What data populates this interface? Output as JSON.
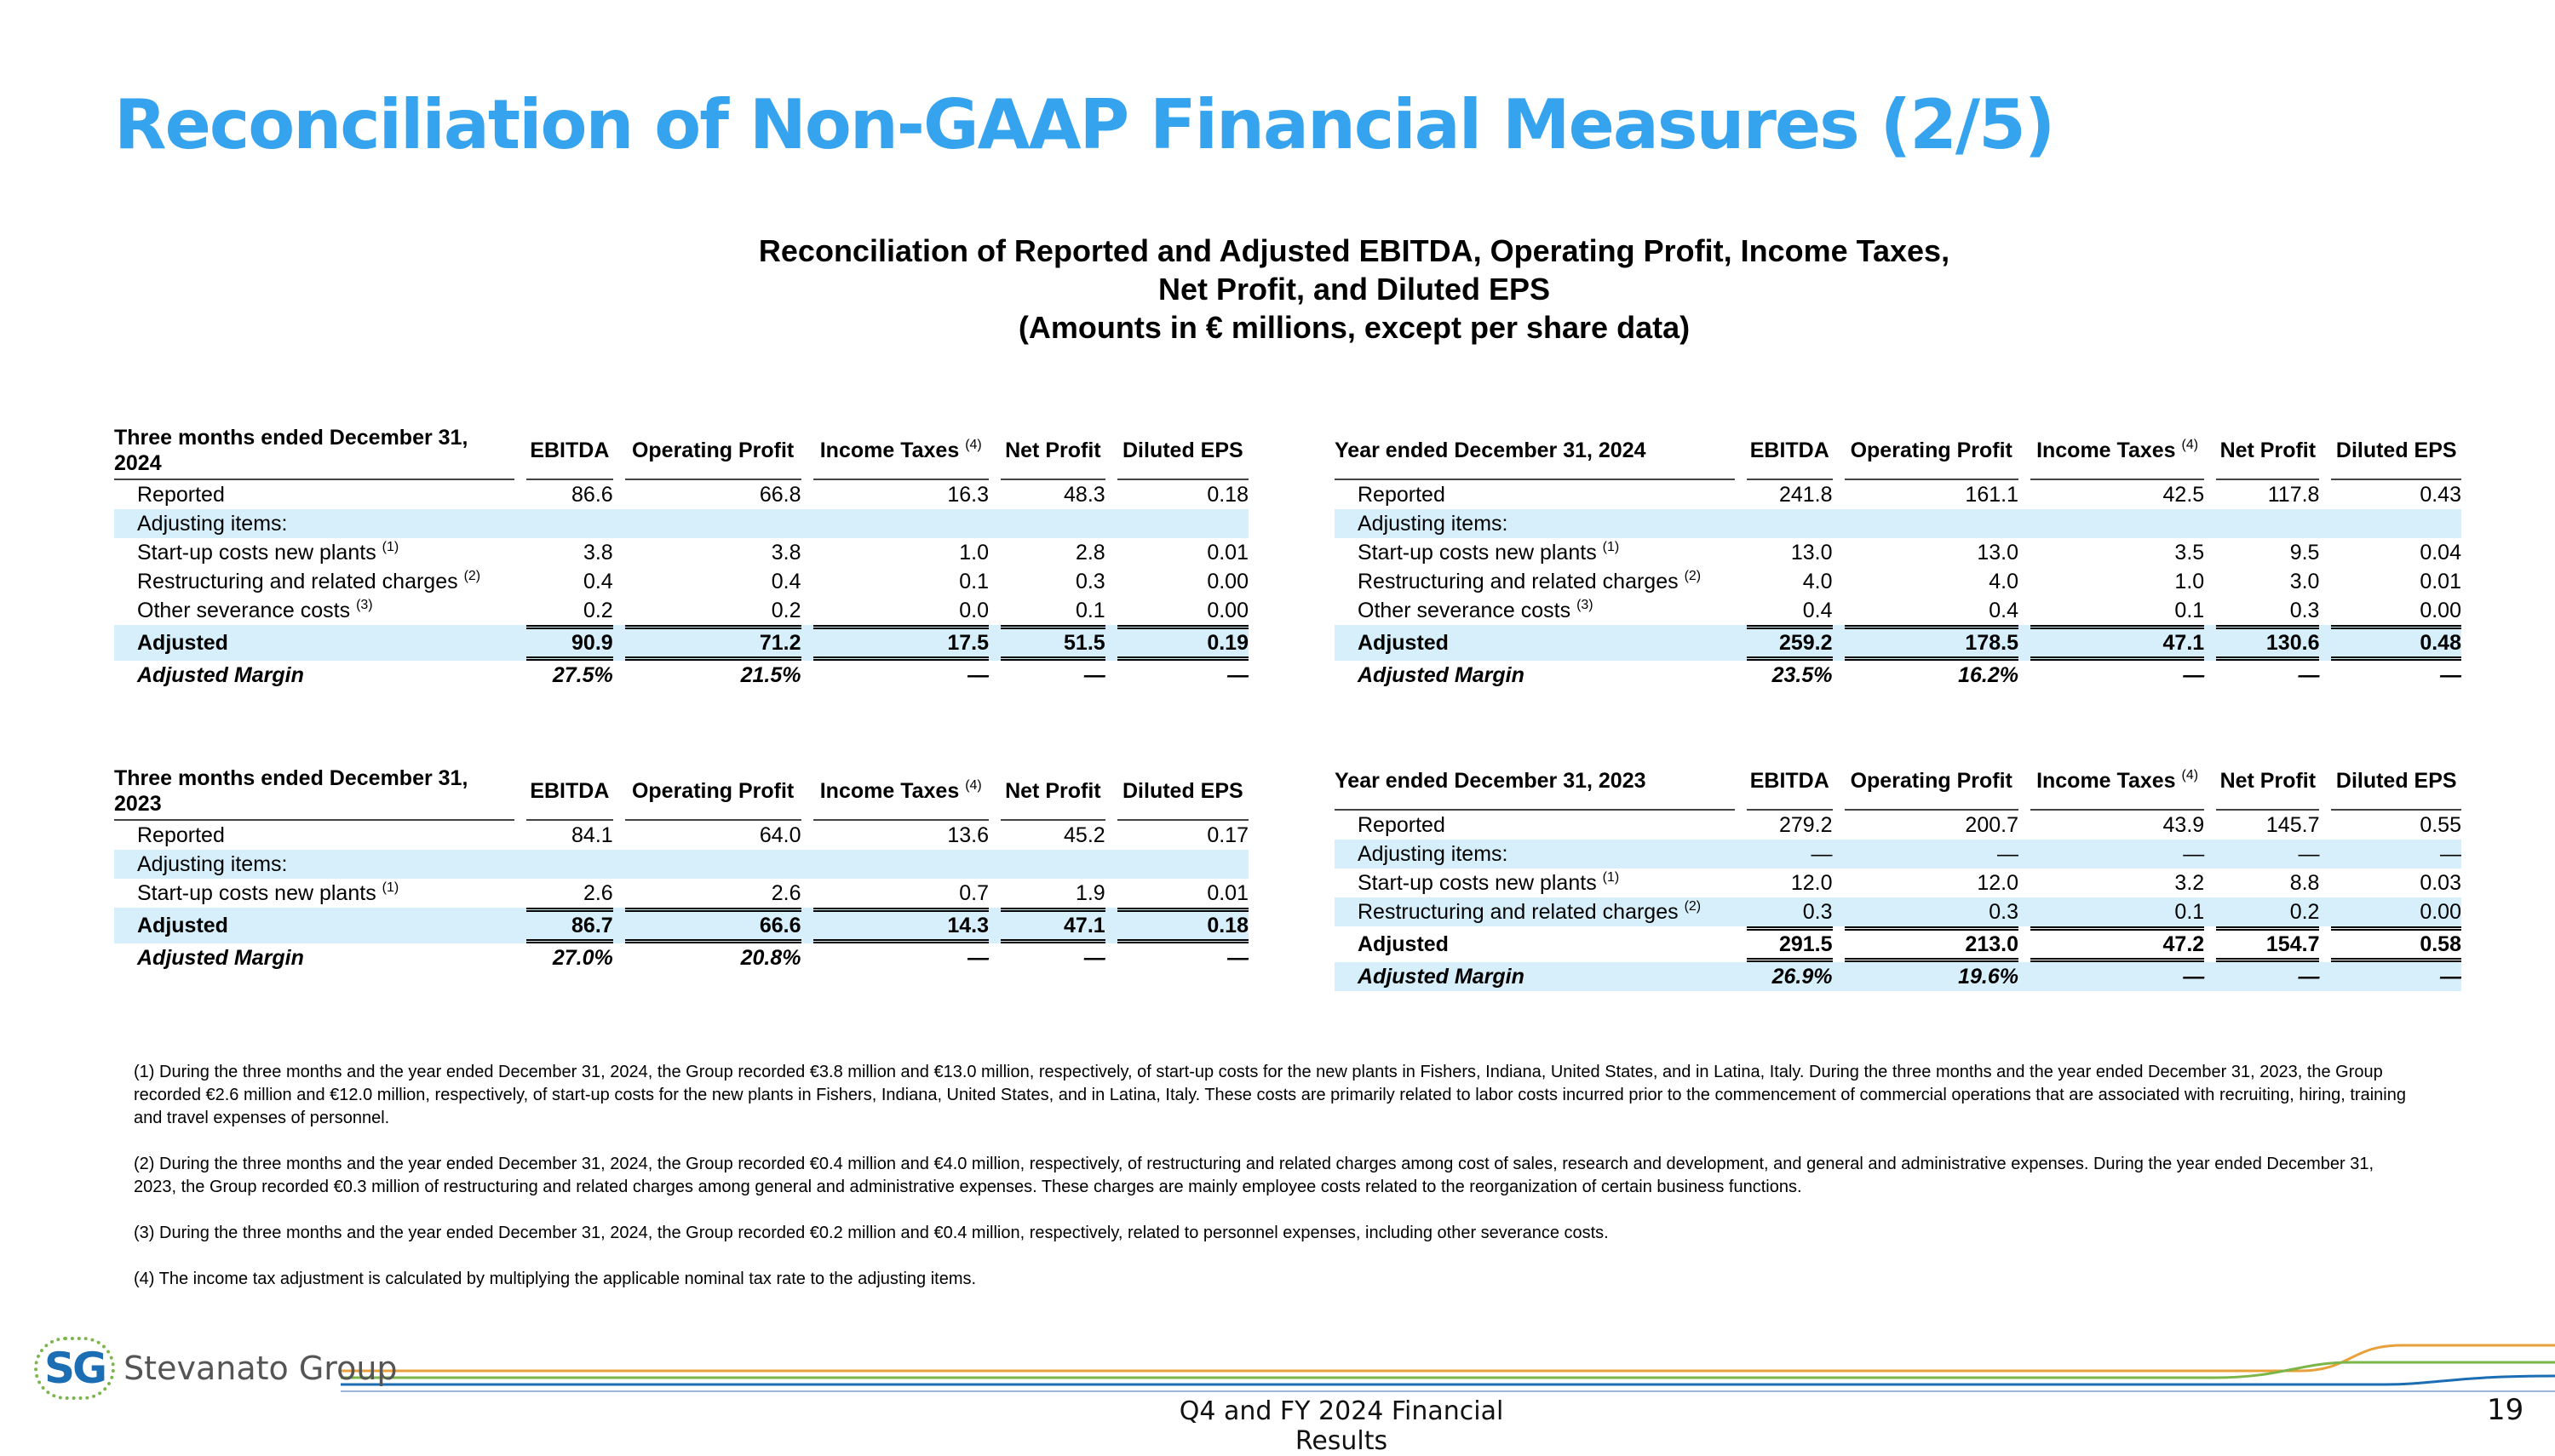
{
  "header": {
    "title": "Reconciliation of Non-GAAP Financial Measures (2/5)",
    "subtitle": [
      "Reconciliation of Reported and Adjusted EBITDA, Operating Profit, Income Taxes,",
      "Net Profit, and Diluted EPS",
      "(Amounts in € millions, except per share data)"
    ]
  },
  "tables": [
    {
      "columns": [
        {
          "text": "Three months ended December 31, 2024"
        },
        {
          "text": "EBITDA"
        },
        {
          "text": "Operating Profit"
        },
        {
          "text": "Income Taxes",
          "sup": "(4)"
        },
        {
          "text": "Net Profit"
        },
        {
          "text": "Diluted EPS"
        }
      ],
      "rows": [
        {
          "label": "Reported",
          "values": [
            "86.6",
            "66.8",
            "16.3",
            "48.3",
            "0.18"
          ]
        },
        {
          "label": "Adjusting items:",
          "shaded": true
        },
        {
          "label": "Start-up costs new plants",
          "sup": "(1)",
          "values": [
            "3.8",
            "3.8",
            "1.0",
            "2.8",
            "0.01"
          ]
        },
        {
          "label": "Restructuring and related charges",
          "sup": "(2)",
          "values": [
            "0.4",
            "0.4",
            "0.1",
            "0.3",
            "0.00"
          ]
        },
        {
          "label": "Other severance costs",
          "sup": "(3)",
          "values": [
            "0.2",
            "0.2",
            "0.0",
            "0.1",
            "0.00"
          ]
        },
        {
          "label": "Adjusted",
          "values": [
            "90.9",
            "71.2",
            "17.5",
            "51.5",
            "0.19"
          ],
          "shaded": true,
          "bold": true,
          "total": true
        },
        {
          "label": "Adjusted Margin",
          "values": [
            "27.5%",
            "21.5%",
            "—",
            "—",
            "—"
          ],
          "bold": true,
          "italic": true
        }
      ]
    },
    {
      "columns": [
        {
          "text": "Year ended December 31, 2024"
        },
        {
          "text": "EBITDA"
        },
        {
          "text": "Operating Profit"
        },
        {
          "text": "Income Taxes",
          "sup": "(4)"
        },
        {
          "text": "Net Profit"
        },
        {
          "text": "Diluted EPS"
        }
      ],
      "rows": [
        {
          "label": "Reported",
          "values": [
            "241.8",
            "161.1",
            "42.5",
            "117.8",
            "0.43"
          ]
        },
        {
          "label": "Adjusting items:",
          "shaded": true
        },
        {
          "label": "Start-up costs new plants",
          "sup": "(1)",
          "values": [
            "13.0",
            "13.0",
            "3.5",
            "9.5",
            "0.04"
          ]
        },
        {
          "label": "Restructuring and related charges",
          "sup": "(2)",
          "values": [
            "4.0",
            "4.0",
            "1.0",
            "3.0",
            "0.01"
          ]
        },
        {
          "label": "Other severance costs",
          "sup": "(3)",
          "values": [
            "0.4",
            "0.4",
            "0.1",
            "0.3",
            "0.00"
          ]
        },
        {
          "label": "Adjusted",
          "values": [
            "259.2",
            "178.5",
            "47.1",
            "130.6",
            "0.48"
          ],
          "shaded": true,
          "bold": true,
          "total": true
        },
        {
          "label": "Adjusted Margin",
          "values": [
            "23.5%",
            "16.2%",
            "—",
            "—",
            "—"
          ],
          "bold": true,
          "italic": true
        }
      ]
    },
    {
      "columns": [
        {
          "text": "Three months ended December 31, 2023"
        },
        {
          "text": "EBITDA"
        },
        {
          "text": "Operating Profit"
        },
        {
          "text": "Income Taxes",
          "sup": "(4)"
        },
        {
          "text": "Net Profit"
        },
        {
          "text": "Diluted EPS"
        }
      ],
      "rows": [
        {
          "label": "Reported",
          "values": [
            "84.1",
            "64.0",
            "13.6",
            "45.2",
            "0.17"
          ]
        },
        {
          "label": "Adjusting items:",
          "shaded": true
        },
        {
          "label": "Start-up costs new plants",
          "sup": "(1)",
          "values": [
            "2.6",
            "2.6",
            "0.7",
            "1.9",
            "0.01"
          ]
        },
        {
          "label": "Adjusted",
          "values": [
            "86.7",
            "66.6",
            "14.3",
            "47.1",
            "0.18"
          ],
          "shaded": true,
          "bold": true,
          "total": true
        },
        {
          "label": "Adjusted Margin",
          "values": [
            "27.0%",
            "20.8%",
            "—",
            "—",
            "—"
          ],
          "bold": true,
          "italic": true
        }
      ]
    },
    {
      "columns": [
        {
          "text": "Year ended December 31, 2023"
        },
        {
          "text": "EBITDA"
        },
        {
          "text": "Operating Profit"
        },
        {
          "text": "Income Taxes",
          "sup": "(4)"
        },
        {
          "text": "Net Profit"
        },
        {
          "text": "Diluted EPS"
        }
      ],
      "rows": [
        {
          "label": "Reported",
          "values": [
            "279.2",
            "200.7",
            "43.9",
            "145.7",
            "0.55"
          ]
        },
        {
          "label": "Adjusting items:",
          "values": [
            "—",
            "—",
            "—",
            "—",
            "—"
          ],
          "shaded": true
        },
        {
          "label": "Start-up costs new plants",
          "sup": "(1)",
          "values": [
            "12.0",
            "12.0",
            "3.2",
            "8.8",
            "0.03"
          ]
        },
        {
          "label": "Restructuring and related charges",
          "sup": "(2)",
          "values": [
            "0.3",
            "0.3",
            "0.1",
            "0.2",
            "0.00"
          ],
          "shaded": true
        },
        {
          "label": "Adjusted",
          "values": [
            "291.5",
            "213.0",
            "47.2",
            "154.7",
            "0.58"
          ],
          "bold": true,
          "total": true
        },
        {
          "label": "Adjusted Margin",
          "values": [
            "26.9%",
            "19.6%",
            "—",
            "—",
            "—"
          ],
          "bold": true,
          "italic": true,
          "shaded": true
        }
      ]
    }
  ],
  "footnotes": [
    "(1) During the three months and the year ended December 31, 2024, the Group recorded €3.8 million and €13.0 million, respectively, of start-up costs for the new plants in Fishers, Indiana, United States, and in Latina, Italy. During the three months and the year ended December 31, 2023, the Group recorded €2.6 million and €12.0 million, respectively, of start-up costs for the new plants in Fishers, Indiana, United States, and in Latina, Italy. These costs are primarily related to labor costs incurred prior to the commencement of commercial operations that are associated with recruiting, hiring, training and travel expenses of personnel.",
    "(2) During the three months and the year ended December 31, 2024, the Group recorded €0.4 million and €4.0 million, respectively, of restructuring and related charges among cost of sales, research and development, and general and administrative expenses. During the year ended December 31, 2023, the Group recorded €0.3 million of restructuring and related charges among general and administrative expenses. These charges are mainly employee costs related to the reorganization of certain business functions.",
    "(3) During the three months and the year ended December 31, 2024, the Group recorded €0.2 million and €0.4 million, respectively, related to personnel expenses, including other severance costs.",
    "(4) The income tax adjustment is calculated by multiplying the applicable nominal tax rate to the adjusting items."
  ],
  "footer": {
    "logo_mark": "SG",
    "logo_text": "Stevanato Group",
    "caption": "Q4 and FY 2024 Financial Results",
    "page": "19"
  }
}
